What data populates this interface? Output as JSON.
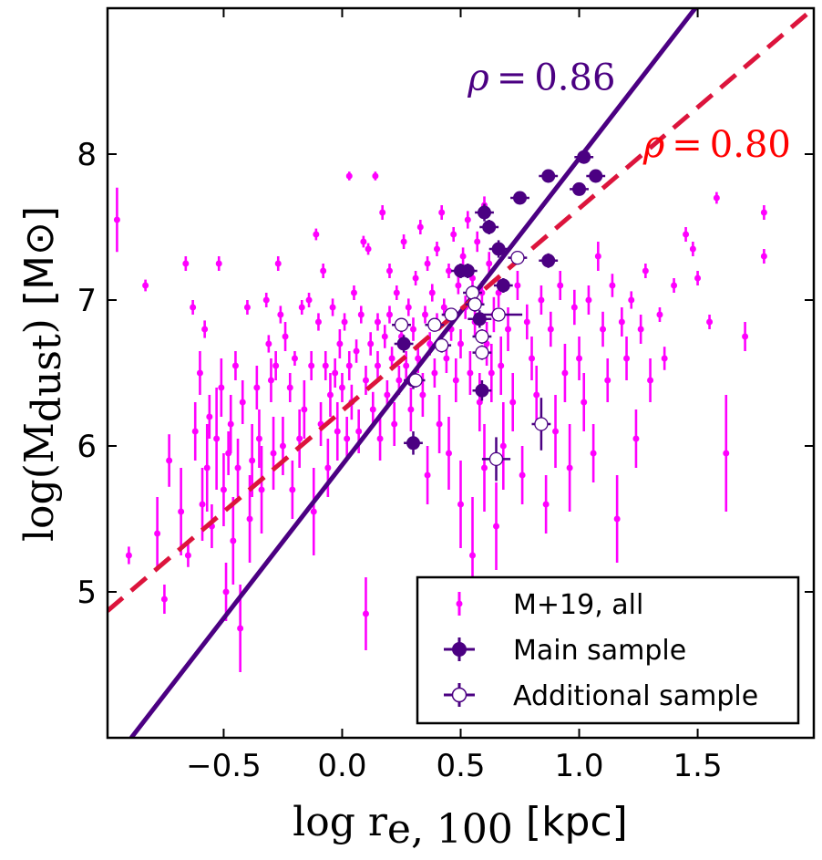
{
  "chart_data": {
    "type": "scatter",
    "xlabel_math": "log r",
    "xlabel_sub": "e, 100",
    "xlabel_unit": "[kpc]",
    "ylabel_math": "log(M",
    "ylabel_sub": "dust",
    "ylabel_close": ")",
    "ylabel_unit": "[M⊙]",
    "xlim": [
      -0.99,
      1.99
    ],
    "ylim": [
      4.0,
      9.0
    ],
    "xticks": [
      -0.5,
      0.0,
      0.5,
      1.0,
      1.5
    ],
    "xtick_labels": [
      "−0.5",
      "0.0",
      "0.5",
      "1.0",
      "1.5"
    ],
    "yticks": [
      5,
      6,
      7,
      8
    ],
    "ytick_labels": [
      "5",
      "6",
      "7",
      "8"
    ],
    "colors": {
      "all": "#ff00ff",
      "main": "#4b0082",
      "fit_main": "#4b0082",
      "fit_all": "#dc143c",
      "rho_main": "#4b0082",
      "rho_all": "#ff0000"
    },
    "fits": [
      {
        "name": "fit-main",
        "style": "solid",
        "x": [
          -0.89,
          1.49
        ],
        "y": [
          4.0,
          9.0
        ]
      },
      {
        "name": "fit-all",
        "style": "dashed",
        "x": [
          -0.99,
          1.99
        ],
        "y": [
          4.87,
          9.0
        ]
      }
    ],
    "annotations": [
      {
        "name": "rho-main",
        "text": "ρ = 0.86",
        "x": 0.53,
        "y": 8.44,
        "color_key": "rho_main"
      },
      {
        "name": "rho-all",
        "text": "ρ = 0.80",
        "x": 1.27,
        "y": 7.98,
        "color_key": "rho_all"
      }
    ],
    "legend": {
      "position": "lower-right",
      "entries": [
        {
          "label": "M+19, all",
          "marker": "small-dot"
        },
        {
          "label": "Main sample",
          "marker": "filled-circle"
        },
        {
          "label": "Additional sample",
          "marker": "open-circle"
        }
      ]
    },
    "series": [
      {
        "name": "M+19, all",
        "points": [
          [
            -0.95,
            7.55,
            0.22
          ],
          [
            -0.9,
            5.25,
            0.06
          ],
          [
            -0.83,
            7.1,
            0.04
          ],
          [
            -0.78,
            5.4,
            0.25
          ],
          [
            -0.75,
            4.95,
            0.1
          ],
          [
            -0.73,
            5.9,
            0.18
          ],
          [
            -0.68,
            5.55,
            0.3
          ],
          [
            -0.66,
            7.25,
            0.05
          ],
          [
            -0.65,
            5.25,
            0.08
          ],
          [
            -0.63,
            6.95,
            0.05
          ],
          [
            -0.62,
            6.1,
            0.2
          ],
          [
            -0.6,
            6.5,
            0.15
          ],
          [
            -0.59,
            5.6,
            0.25
          ],
          [
            -0.58,
            6.8,
            0.06
          ],
          [
            -0.57,
            5.85,
            0.3
          ],
          [
            -0.56,
            6.2,
            0.15
          ],
          [
            -0.55,
            5.45,
            0.15
          ],
          [
            -0.53,
            6.05,
            0.35
          ],
          [
            -0.52,
            7.25,
            0.05
          ],
          [
            -0.51,
            6.4,
            0.2
          ],
          [
            -0.5,
            5.7,
            0.25
          ],
          [
            -0.49,
            5.0,
            0.2
          ],
          [
            -0.48,
            5.95,
            0.15
          ],
          [
            -0.47,
            6.15,
            0.2
          ],
          [
            -0.46,
            5.35,
            0.3
          ],
          [
            -0.45,
            6.55,
            0.1
          ],
          [
            -0.44,
            5.85,
            0.2
          ],
          [
            -0.43,
            4.75,
            0.3
          ],
          [
            -0.42,
            6.3,
            0.15
          ],
          [
            -0.4,
            6.95,
            0.05
          ],
          [
            -0.39,
            5.5,
            0.3
          ],
          [
            -0.38,
            5.9,
            0.25
          ],
          [
            -0.36,
            6.4,
            0.15
          ],
          [
            -0.35,
            6.05,
            0.2
          ],
          [
            -0.34,
            5.7,
            0.3
          ],
          [
            -0.32,
            7.0,
            0.05
          ],
          [
            -0.31,
            6.7,
            0.06
          ],
          [
            -0.3,
            6.45,
            0.15
          ],
          [
            -0.29,
            5.95,
            0.25
          ],
          [
            -0.28,
            6.55,
            0.1
          ],
          [
            -0.27,
            7.25,
            0.05
          ],
          [
            -0.26,
            6.9,
            0.06
          ],
          [
            -0.25,
            6.0,
            0.2
          ],
          [
            -0.24,
            6.75,
            0.1
          ],
          [
            -0.22,
            6.4,
            0.1
          ],
          [
            -0.21,
            5.7,
            0.2
          ],
          [
            -0.2,
            6.6,
            0.05
          ],
          [
            -0.18,
            6.05,
            0.2
          ],
          [
            -0.17,
            6.95,
            0.05
          ],
          [
            -0.16,
            6.25,
            0.2
          ],
          [
            -0.14,
            7.0,
            0.05
          ],
          [
            -0.13,
            6.55,
            0.1
          ],
          [
            -0.12,
            5.55,
            0.3
          ],
          [
            -0.11,
            7.45,
            0.04
          ],
          [
            -0.1,
            6.85,
            0.06
          ],
          [
            -0.09,
            6.15,
            0.15
          ],
          [
            -0.08,
            7.2,
            0.05
          ],
          [
            -0.07,
            6.55,
            0.1
          ],
          [
            -0.06,
            5.85,
            0.2
          ],
          [
            -0.05,
            6.35,
            0.15
          ],
          [
            -0.04,
            6.95,
            0.06
          ],
          [
            -0.03,
            6.5,
            0.1
          ],
          [
            -0.02,
            6.1,
            0.2
          ],
          [
            -0.01,
            6.7,
            0.1
          ],
          [
            0.0,
            6.4,
            0.1
          ],
          [
            0.01,
            6.85,
            0.06
          ],
          [
            0.02,
            6.05,
            0.15
          ],
          [
            0.03,
            6.55,
            0.1
          ],
          [
            0.03,
            7.85,
            0.03
          ],
          [
            0.04,
            6.3,
            0.12
          ],
          [
            0.05,
            7.05,
            0.05
          ],
          [
            0.06,
            6.65,
            0.08
          ],
          [
            0.07,
            6.1,
            0.15
          ],
          [
            0.08,
            6.9,
            0.06
          ],
          [
            0.09,
            7.4,
            0.04
          ],
          [
            0.1,
            6.45,
            0.1
          ],
          [
            0.1,
            4.85,
            0.25
          ],
          [
            0.11,
            7.35,
            0.04
          ],
          [
            0.12,
            6.7,
            0.08
          ],
          [
            0.13,
            6.25,
            0.12
          ],
          [
            0.14,
            7.85,
            0.03
          ],
          [
            0.15,
            6.85,
            0.06
          ],
          [
            0.15,
            6.55,
            0.1
          ],
          [
            0.16,
            6.05,
            0.15
          ],
          [
            0.17,
            7.6,
            0.05
          ],
          [
            0.18,
            6.75,
            0.08
          ],
          [
            0.19,
            6.35,
            0.1
          ],
          [
            0.2,
            7.2,
            0.05
          ],
          [
            0.2,
            6.9,
            0.06
          ],
          [
            0.21,
            6.6,
            0.08
          ],
          [
            0.22,
            6.15,
            0.15
          ],
          [
            0.23,
            7.05,
            0.05
          ],
          [
            0.24,
            6.45,
            0.1
          ],
          [
            0.25,
            6.75,
            0.08
          ],
          [
            0.26,
            7.4,
            0.05
          ],
          [
            0.27,
            6.55,
            0.1
          ],
          [
            0.28,
            6.95,
            0.06
          ],
          [
            0.29,
            6.25,
            0.15
          ],
          [
            0.3,
            6.8,
            0.08
          ],
          [
            0.31,
            7.15,
            0.05
          ],
          [
            0.32,
            6.6,
            0.1
          ],
          [
            0.33,
            7.5,
            0.05
          ],
          [
            0.34,
            6.35,
            0.15
          ],
          [
            0.35,
            6.9,
            0.06
          ],
          [
            0.36,
            7.25,
            0.05
          ],
          [
            0.36,
            5.8,
            0.2
          ],
          [
            0.37,
            6.7,
            0.08
          ],
          [
            0.38,
            7.05,
            0.06
          ],
          [
            0.39,
            6.5,
            0.1
          ],
          [
            0.4,
            7.35,
            0.05
          ],
          [
            0.4,
            6.85,
            0.06
          ],
          [
            0.41,
            6.15,
            0.2
          ],
          [
            0.42,
            7.6,
            0.05
          ],
          [
            0.43,
            6.95,
            0.06
          ],
          [
            0.44,
            6.6,
            0.1
          ],
          [
            0.45,
            7.2,
            0.05
          ],
          [
            0.45,
            5.95,
            0.25
          ],
          [
            0.46,
            6.8,
            0.08
          ],
          [
            0.47,
            7.45,
            0.05
          ],
          [
            0.48,
            6.45,
            0.15
          ],
          [
            0.49,
            7.1,
            0.06
          ],
          [
            0.5,
            6.7,
            0.1
          ],
          [
            0.5,
            5.6,
            0.3
          ],
          [
            0.51,
            7.3,
            0.06
          ],
          [
            0.52,
            6.95,
            0.08
          ],
          [
            0.53,
            7.55,
            0.06
          ],
          [
            0.54,
            6.5,
            0.15
          ],
          [
            0.55,
            7.15,
            0.07
          ],
          [
            0.55,
            5.25,
            0.4
          ],
          [
            0.56,
            6.85,
            0.1
          ],
          [
            0.57,
            7.4,
            0.07
          ],
          [
            0.58,
            6.3,
            0.2
          ],
          [
            0.59,
            7.05,
            0.08
          ],
          [
            0.6,
            7.65,
            0.06
          ],
          [
            0.6,
            5.85,
            0.3
          ],
          [
            0.61,
            6.7,
            0.15
          ],
          [
            0.62,
            7.25,
            0.08
          ],
          [
            0.63,
            6.5,
            0.2
          ],
          [
            0.64,
            6.9,
            0.12
          ],
          [
            0.65,
            5.45,
            0.3
          ],
          [
            0.66,
            7.05,
            0.1
          ],
          [
            0.67,
            6.55,
            0.2
          ],
          [
            0.68,
            6.0,
            0.3
          ],
          [
            0.7,
            6.8,
            0.15
          ],
          [
            0.72,
            6.3,
            0.2
          ],
          [
            0.74,
            7.1,
            0.1
          ],
          [
            0.76,
            5.8,
            0.2
          ],
          [
            0.78,
            6.85,
            0.12
          ],
          [
            0.8,
            6.6,
            0.15
          ],
          [
            0.82,
            6.35,
            0.2
          ],
          [
            0.84,
            7.0,
            0.1
          ],
          [
            0.86,
            5.6,
            0.2
          ],
          [
            0.88,
            6.8,
            0.12
          ],
          [
            0.9,
            6.1,
            0.25
          ],
          [
            0.92,
            7.1,
            0.1
          ],
          [
            0.94,
            6.5,
            0.2
          ],
          [
            0.96,
            5.85,
            0.3
          ],
          [
            0.98,
            6.95,
            0.12
          ],
          [
            1.0,
            6.6,
            0.15
          ],
          [
            1.02,
            6.3,
            0.2
          ],
          [
            1.04,
            7.0,
            0.1
          ],
          [
            1.06,
            5.95,
            0.2
          ],
          [
            1.08,
            7.3,
            0.1
          ],
          [
            1.1,
            6.8,
            0.12
          ],
          [
            1.12,
            6.45,
            0.15
          ],
          [
            1.14,
            7.1,
            0.08
          ],
          [
            1.16,
            5.5,
            0.3
          ],
          [
            1.18,
            6.85,
            0.1
          ],
          [
            1.2,
            6.6,
            0.15
          ],
          [
            1.22,
            7.0,
            0.06
          ],
          [
            1.24,
            6.05,
            0.2
          ],
          [
            1.26,
            6.8,
            0.1
          ],
          [
            1.28,
            7.2,
            0.05
          ],
          [
            1.3,
            6.45,
            0.15
          ],
          [
            1.34,
            6.9,
            0.05
          ],
          [
            1.36,
            6.6,
            0.08
          ],
          [
            1.4,
            7.1,
            0.05
          ],
          [
            1.45,
            7.45,
            0.05
          ],
          [
            1.48,
            7.35,
            0.05
          ],
          [
            1.5,
            7.15,
            0.05
          ],
          [
            1.55,
            6.85,
            0.05
          ],
          [
            1.58,
            7.7,
            0.04
          ],
          [
            1.62,
            5.95,
            0.4
          ],
          [
            1.7,
            6.75,
            0.1
          ],
          [
            1.78,
            7.6,
            0.05
          ],
          [
            1.78,
            7.3,
            0.05
          ]
        ]
      },
      {
        "name": "Main sample",
        "points": [
          [
            0.26,
            6.7,
            0.04,
            0.06
          ],
          [
            0.3,
            6.45,
            0.04,
            0.06
          ],
          [
            0.3,
            6.02,
            0.04,
            0.08
          ],
          [
            0.5,
            7.2,
            0.04,
            0.05
          ],
          [
            0.53,
            7.2,
            0.04,
            0.05
          ],
          [
            0.58,
            6.87,
            0.05,
            0.06
          ],
          [
            0.59,
            6.38,
            0.04,
            0.07
          ],
          [
            0.6,
            7.6,
            0.04,
            0.06
          ],
          [
            0.62,
            7.5,
            0.04,
            0.05
          ],
          [
            0.66,
            7.35,
            0.04,
            0.06
          ],
          [
            0.68,
            7.1,
            0.04,
            0.05
          ],
          [
            0.75,
            7.7,
            0.04,
            0.04
          ],
          [
            0.87,
            7.85,
            0.04,
            0.04
          ],
          [
            0.87,
            7.27,
            0.04,
            0.05
          ],
          [
            1.0,
            7.76,
            0.04,
            0.04
          ],
          [
            1.02,
            7.98,
            0.04,
            0.04
          ],
          [
            1.07,
            7.85,
            0.04,
            0.04
          ]
        ]
      },
      {
        "name": "Additional sample",
        "points": [
          [
            0.25,
            6.83,
            0.04,
            0.04
          ],
          [
            0.31,
            6.45,
            0.04,
            0.05
          ],
          [
            0.39,
            6.83,
            0.04,
            0.04
          ],
          [
            0.42,
            6.69,
            0.04,
            0.05
          ],
          [
            0.46,
            6.9,
            0.04,
            0.04
          ],
          [
            0.55,
            7.05,
            0.04,
            0.05
          ],
          [
            0.56,
            6.97,
            0.04,
            0.05
          ],
          [
            0.59,
            6.75,
            0.04,
            0.05
          ],
          [
            0.59,
            6.64,
            0.04,
            0.05
          ],
          [
            0.65,
            5.91,
            0.06,
            0.15
          ],
          [
            0.66,
            6.9,
            0.1,
            0.04
          ],
          [
            0.74,
            7.29,
            0.04,
            0.04
          ],
          [
            0.84,
            6.15,
            0.04,
            0.18
          ]
        ]
      }
    ]
  }
}
